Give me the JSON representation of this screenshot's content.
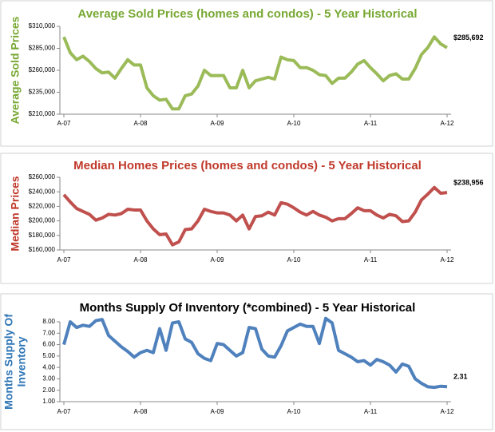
{
  "chart_data": [
    {
      "type": "line",
      "title": "Average Sold Prices (homes and condos) - 5 Year Historical",
      "title_color": "#77a832",
      "y_label": "Average Sold Prices",
      "y_label_color": "#77a832",
      "annotation": "$285,692",
      "categories": [
        "A-07",
        null,
        null,
        null,
        null,
        null,
        null,
        null,
        null,
        null,
        null,
        null,
        "A-08",
        null,
        null,
        null,
        null,
        null,
        null,
        null,
        null,
        null,
        null,
        null,
        "A-09",
        null,
        null,
        null,
        null,
        null,
        null,
        null,
        null,
        null,
        null,
        null,
        "A-10",
        null,
        null,
        null,
        null,
        null,
        null,
        null,
        null,
        null,
        null,
        null,
        "A-11",
        null,
        null,
        null,
        null,
        null,
        null,
        null,
        null,
        null,
        null,
        null,
        "A-12"
      ],
      "series": [
        {
          "color": "#9bbb59",
          "values": [
            298000,
            280000,
            272000,
            276000,
            270000,
            262000,
            257000,
            258000,
            251000,
            262000,
            272000,
            266000,
            266000,
            240000,
            231000,
            226000,
            227000,
            216000,
            216000,
            231000,
            233000,
            242000,
            260000,
            254000,
            254000,
            254000,
            240000,
            240000,
            260000,
            240000,
            248000,
            250000,
            252000,
            250000,
            275000,
            272000,
            271000,
            263000,
            263000,
            260000,
            255000,
            254000,
            245000,
            251000,
            251000,
            258000,
            267000,
            271000,
            263000,
            256000,
            248000,
            254000,
            256000,
            250000,
            250000,
            262000,
            278000,
            286000,
            298000,
            290000,
            285692
          ]
        }
      ],
      "ylim": [
        210000,
        310000
      ],
      "yticks": [
        {
          "value": 210000,
          "label": "$210,000"
        },
        {
          "value": 235000,
          "label": "$235,000"
        },
        {
          "value": 260000,
          "label": "$260,000"
        },
        {
          "value": 285000,
          "label": "$285,000"
        },
        {
          "value": 310000,
          "label": "$310,000"
        }
      ],
      "grid": false
    },
    {
      "type": "line",
      "title": "Median Homes Prices (homes and condos) - 5 Year Historical",
      "title_color": "#c0392b",
      "y_label": "Median Prices",
      "y_label_color": "#c0392b",
      "annotation": "$238,956",
      "categories": [
        "A-07",
        null,
        null,
        null,
        null,
        null,
        null,
        null,
        null,
        null,
        null,
        null,
        "A-08",
        null,
        null,
        null,
        null,
        null,
        null,
        null,
        null,
        null,
        null,
        null,
        "A-09",
        null,
        null,
        null,
        null,
        null,
        null,
        null,
        null,
        null,
        null,
        null,
        "A-10",
        null,
        null,
        null,
        null,
        null,
        null,
        null,
        null,
        null,
        null,
        null,
        "A-11",
        null,
        null,
        null,
        null,
        null,
        null,
        null,
        null,
        null,
        null,
        null,
        "A-12"
      ],
      "series": [
        {
          "color": "#c0504d",
          "values": [
            236000,
            226000,
            217000,
            213000,
            209000,
            201000,
            204000,
            209000,
            208000,
            210000,
            216000,
            215000,
            215000,
            200000,
            189000,
            181000,
            182000,
            167000,
            171000,
            188000,
            189000,
            200000,
            216000,
            213000,
            211000,
            211000,
            208000,
            200000,
            208000,
            189000,
            206000,
            207000,
            212000,
            208000,
            225000,
            223000,
            218000,
            212000,
            208000,
            213000,
            208000,
            205000,
            200000,
            203000,
            203000,
            210000,
            218000,
            214000,
            214000,
            208000,
            204000,
            209000,
            207000,
            199000,
            200000,
            212000,
            229000,
            237000,
            246000,
            238000,
            238956
          ]
        }
      ],
      "ylim": [
        160000,
        260000
      ],
      "yticks": [
        {
          "value": 160000,
          "label": "$160,000"
        },
        {
          "value": 180000,
          "label": "$180,000"
        },
        {
          "value": 200000,
          "label": "$200,000"
        },
        {
          "value": 220000,
          "label": "$220,000"
        },
        {
          "value": 240000,
          "label": "$240,000"
        },
        {
          "value": 260000,
          "label": "$260,000"
        }
      ],
      "grid": false
    },
    {
      "type": "line",
      "title": "Months Supply Of Inventory (*combined) - 5 Year Historical",
      "title_color": "#000000",
      "y_label": [
        "Months Supply Of",
        "Inventory"
      ],
      "y_label_color": "#2e75b6",
      "annotation": "2.31",
      "categories": [
        "A-07",
        null,
        null,
        null,
        null,
        null,
        null,
        null,
        null,
        null,
        null,
        null,
        "A-08",
        null,
        null,
        null,
        null,
        null,
        null,
        null,
        null,
        null,
        null,
        null,
        "A-09",
        null,
        null,
        null,
        null,
        null,
        null,
        null,
        null,
        null,
        null,
        null,
        "A-10",
        null,
        null,
        null,
        null,
        null,
        null,
        null,
        null,
        null,
        null,
        null,
        "A-11",
        null,
        null,
        null,
        null,
        null,
        null,
        null,
        null,
        null,
        null,
        null,
        "A-12"
      ],
      "series": [
        {
          "color": "#4f81bd",
          "values": [
            6.0,
            8.0,
            7.5,
            7.7,
            7.6,
            8.1,
            8.2,
            6.8,
            6.3,
            5.8,
            5.4,
            4.9,
            5.3,
            5.5,
            5.3,
            7.4,
            5.5,
            7.9,
            8.0,
            6.5,
            6.2,
            5.2,
            4.8,
            4.6,
            6.1,
            6.0,
            5.5,
            5.0,
            5.3,
            7.5,
            7.4,
            5.6,
            5.0,
            4.9,
            5.9,
            7.2,
            7.5,
            7.8,
            7.6,
            7.6,
            6.1,
            8.3,
            7.9,
            5.5,
            5.2,
            4.9,
            4.5,
            4.6,
            4.2,
            4.7,
            4.5,
            4.2,
            3.6,
            4.3,
            4.1,
            3.0,
            2.6,
            2.3,
            2.25,
            2.35,
            2.31
          ]
        }
      ],
      "ylim": [
        1,
        8
      ],
      "yticks": [
        {
          "value": 1,
          "label": "1.00"
        },
        {
          "value": 2,
          "label": "2.00"
        },
        {
          "value": 3,
          "label": "3.00"
        },
        {
          "value": 4,
          "label": "4.00"
        },
        {
          "value": 5,
          "label": "5.00"
        },
        {
          "value": 6,
          "label": "6.00"
        },
        {
          "value": 7,
          "label": "7.00"
        },
        {
          "value": 8,
          "label": "8.00"
        }
      ],
      "grid": false
    }
  ]
}
